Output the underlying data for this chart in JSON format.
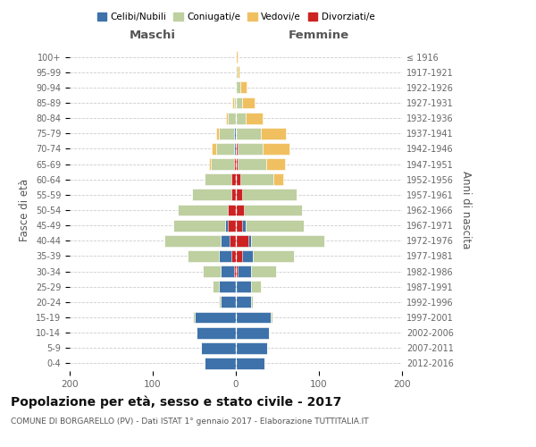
{
  "age_groups": [
    "0-4",
    "5-9",
    "10-14",
    "15-19",
    "20-24",
    "25-29",
    "30-34",
    "35-39",
    "40-44",
    "45-49",
    "50-54",
    "55-59",
    "60-64",
    "65-69",
    "70-74",
    "75-79",
    "80-84",
    "85-89",
    "90-94",
    "95-99",
    "100+"
  ],
  "birth_years": [
    "2012-2016",
    "2007-2011",
    "2002-2006",
    "1997-2001",
    "1992-1996",
    "1987-1991",
    "1982-1986",
    "1977-1981",
    "1972-1976",
    "1967-1971",
    "1962-1966",
    "1957-1961",
    "1952-1956",
    "1947-1951",
    "1942-1946",
    "1937-1941",
    "1932-1936",
    "1927-1931",
    "1922-1926",
    "1917-1921",
    "≤ 1916"
  ],
  "colors": {
    "celibi": "#3E72AA",
    "coniugati": "#BECFA0",
    "vedovi": "#F0C060",
    "divorziati": "#CC2222"
  },
  "maschi": {
    "celibi": [
      38,
      42,
      47,
      50,
      18,
      20,
      18,
      20,
      18,
      13,
      10,
      5,
      3,
      2,
      2,
      2,
      0,
      0,
      0,
      0,
      0
    ],
    "coniugati": [
      0,
      0,
      0,
      2,
      2,
      8,
      22,
      38,
      68,
      62,
      60,
      48,
      35,
      28,
      22,
      18,
      10,
      2,
      1,
      0,
      0
    ],
    "vedovi": [
      0,
      0,
      0,
      0,
      0,
      0,
      0,
      0,
      0,
      0,
      0,
      0,
      0,
      2,
      5,
      4,
      2,
      2,
      0,
      0,
      0
    ],
    "divorziati": [
      0,
      0,
      0,
      0,
      0,
      0,
      2,
      5,
      8,
      10,
      10,
      5,
      5,
      2,
      0,
      0,
      0,
      0,
      0,
      0,
      0
    ]
  },
  "femmine": {
    "celibi": [
      34,
      38,
      40,
      42,
      18,
      18,
      18,
      20,
      18,
      12,
      8,
      5,
      3,
      2,
      2,
      0,
      0,
      0,
      0,
      0,
      0
    ],
    "coniugati": [
      0,
      0,
      0,
      2,
      2,
      12,
      30,
      50,
      88,
      70,
      72,
      68,
      42,
      35,
      30,
      30,
      12,
      8,
      5,
      2,
      0
    ],
    "vedovi": [
      0,
      0,
      0,
      0,
      0,
      0,
      0,
      0,
      0,
      0,
      0,
      0,
      12,
      22,
      32,
      30,
      20,
      15,
      8,
      2,
      2
    ],
    "divorziati": [
      0,
      0,
      0,
      0,
      0,
      0,
      2,
      8,
      15,
      8,
      10,
      8,
      5,
      2,
      2,
      0,
      0,
      0,
      0,
      0,
      0
    ]
  },
  "xlim": 200,
  "title": "Popolazione per età, sesso e stato civile - 2017",
  "subtitle": "COMUNE DI BORGARELLO (PV) - Dati ISTAT 1° gennaio 2017 - Elaborazione TUTTITALIA.IT",
  "ylabel_left": "Fasce di età",
  "ylabel_right": "Anni di nascita",
  "xlabel_left": "Maschi",
  "xlabel_right": "Femmine",
  "bg_color": "#FFFFFF",
  "grid_color": "#CCCCCC",
  "legend_labels": [
    "Celibi/Nubili",
    "Coniugati/e",
    "Vedovi/e",
    "Divorziati/e"
  ]
}
